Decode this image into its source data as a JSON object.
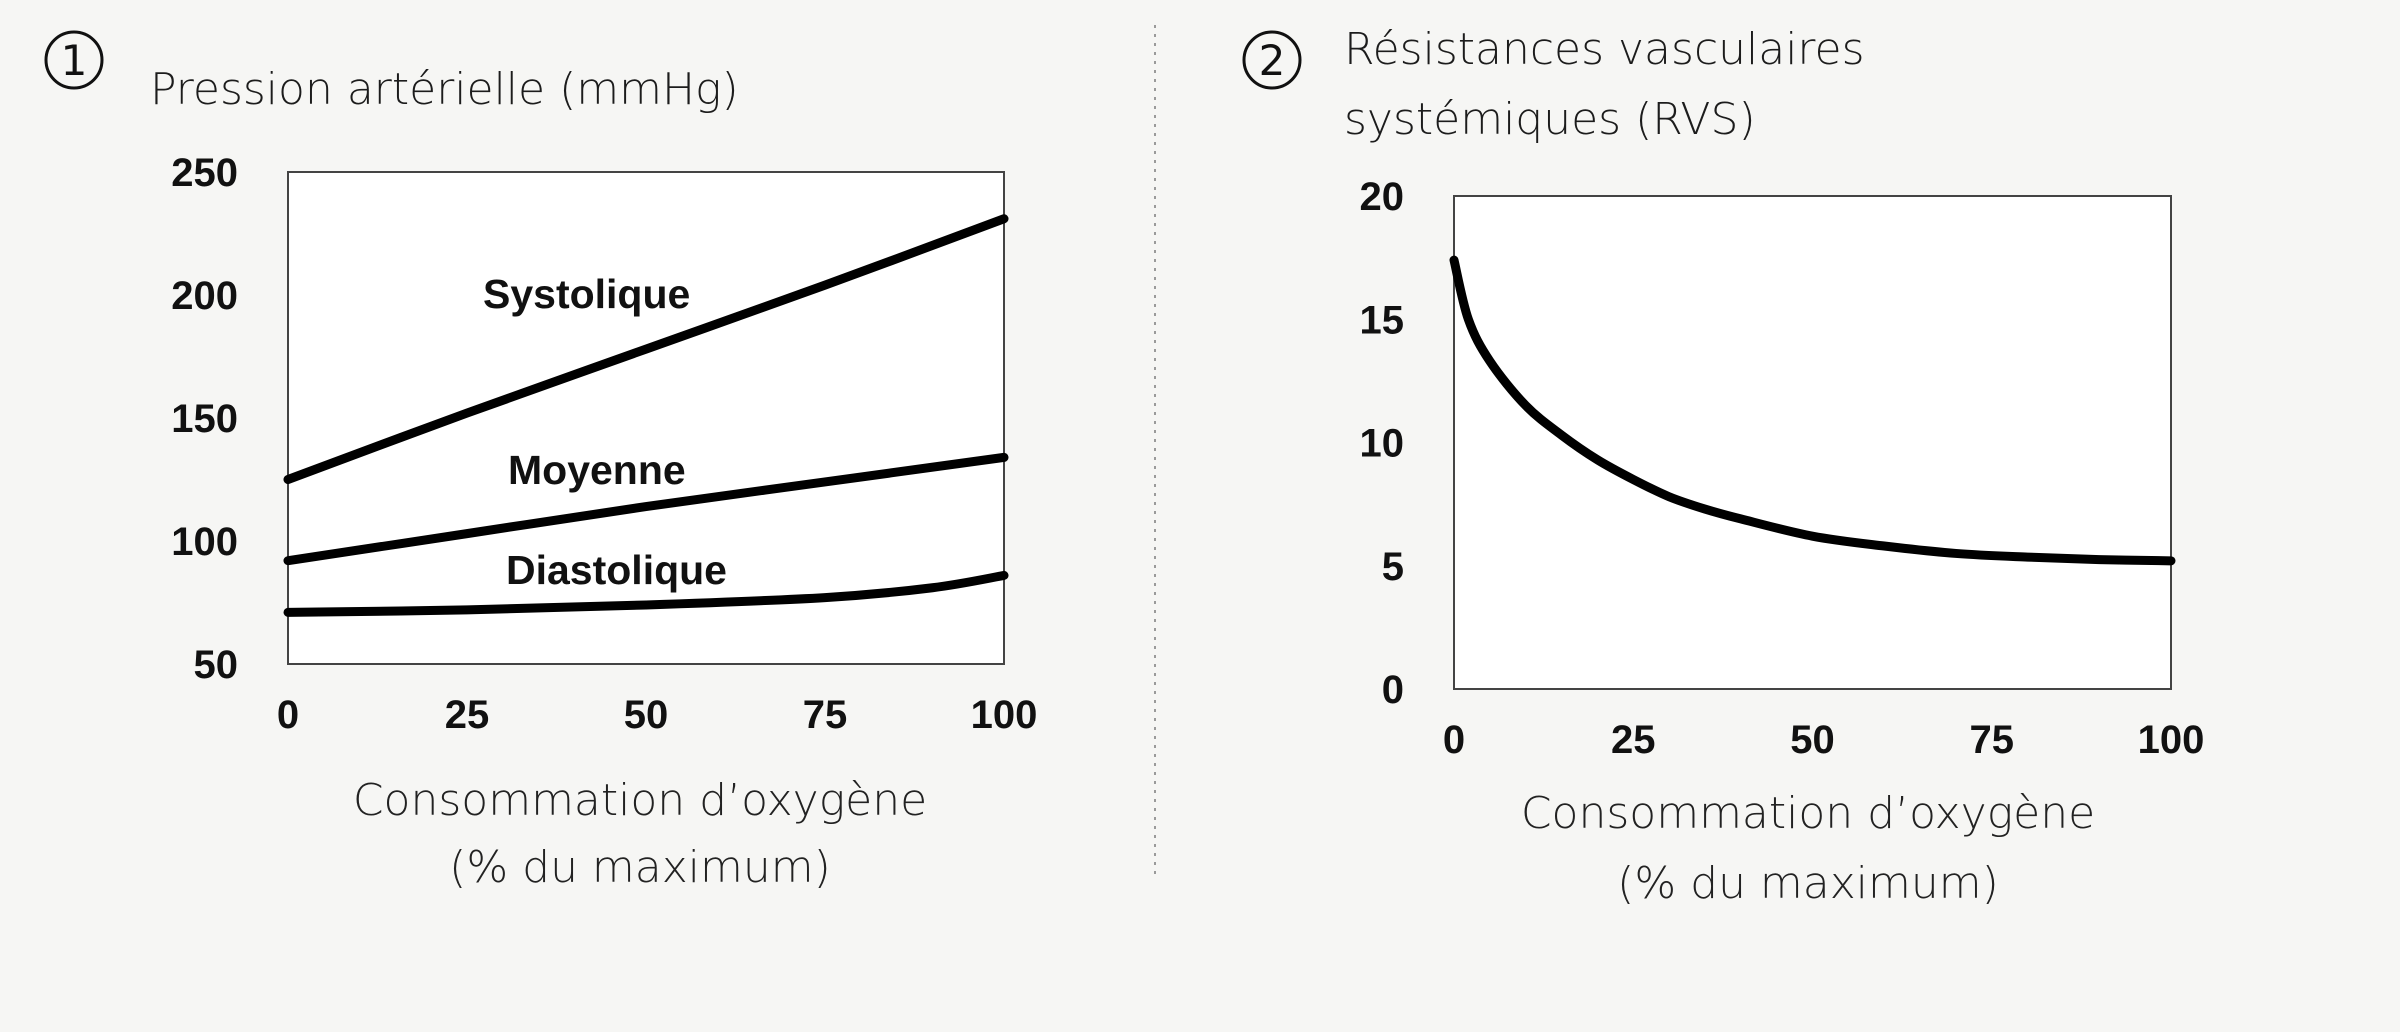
{
  "chart_data": [
    {
      "type": "line",
      "badge": "1",
      "title": "Pression artérielle (mmHg)",
      "xlabel": [
        "Consommation d’oxygène",
        "(% du maximum)"
      ],
      "ylabel": "",
      "xlim": [
        0,
        100
      ],
      "ylim": [
        50,
        250
      ],
      "xticks": [
        "0",
        "25",
        "50",
        "75",
        "100"
      ],
      "yticks": [
        "250",
        "200",
        "150",
        "100",
        "50"
      ],
      "grid": false,
      "series": [
        {
          "name": "Systolique",
          "x": [
            0,
            25,
            50,
            75,
            100
          ],
          "y": [
            125,
            152,
            178,
            204,
            231
          ]
        },
        {
          "name": "Moyenne",
          "x": [
            0,
            25,
            50,
            75,
            100
          ],
          "y": [
            92,
            103,
            114,
            124,
            134
          ]
        },
        {
          "name": "Diastolique",
          "x": [
            0,
            25,
            50,
            75,
            90,
            100
          ],
          "y": [
            71,
            72,
            74,
            77,
            81,
            86
          ]
        }
      ]
    },
    {
      "type": "line",
      "badge": "2",
      "title": [
        "Résistances vasculaires",
        "systémiques (RVS)"
      ],
      "xlabel": [
        "Consommation d’oxygène",
        "(% du maximum)"
      ],
      "ylabel": "",
      "xlim": [
        0,
        100
      ],
      "ylim": [
        0,
        20
      ],
      "xticks": [
        "0",
        "25",
        "50",
        "75",
        "100"
      ],
      "yticks": [
        "20",
        "15",
        "10",
        "5",
        "0"
      ],
      "grid": false,
      "series": [
        {
          "name": "",
          "x": [
            0,
            2,
            5,
            10,
            15,
            20,
            25,
            30,
            35,
            40,
            50,
            60,
            70,
            80,
            90,
            100
          ],
          "y": [
            17.4,
            15.0,
            13.3,
            11.5,
            10.3,
            9.3,
            8.5,
            7.8,
            7.3,
            6.9,
            6.2,
            5.8,
            5.5,
            5.35,
            5.25,
            5.2
          ]
        }
      ]
    }
  ]
}
